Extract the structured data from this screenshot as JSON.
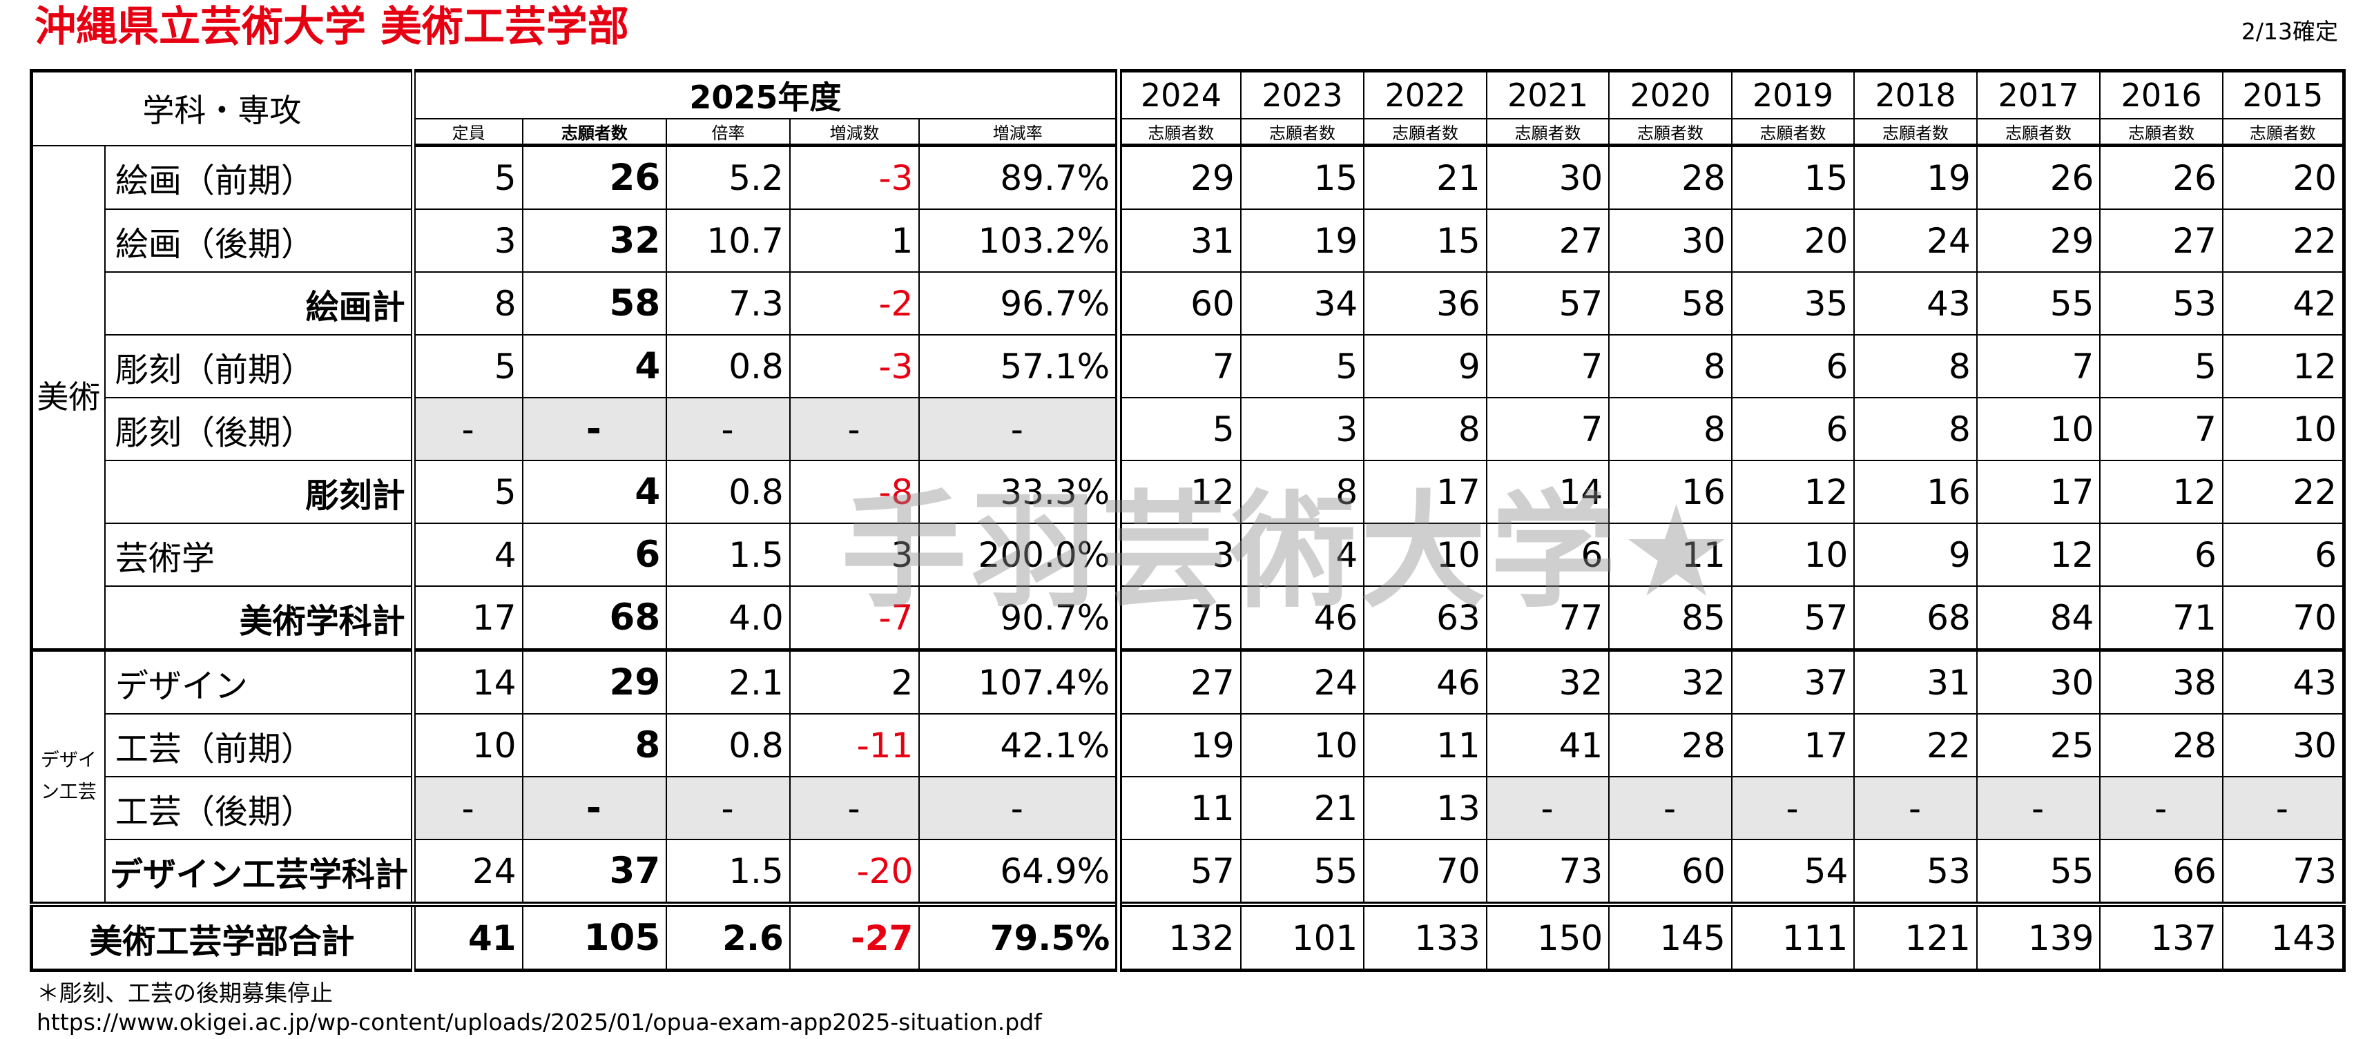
{
  "title": "沖縄県立芸術大学 美術工芸学部",
  "confirmed": "2/13確定",
  "watermark": "手羽芸術大学★",
  "header": {
    "dept": "学科・専攻",
    "year2025": "2025年度",
    "sub2025": [
      "定員",
      "志願者数",
      "倍率",
      "増減数",
      "増減率"
    ],
    "years": [
      "2024",
      "2023",
      "2022",
      "2021",
      "2020",
      "2019",
      "2018",
      "2017",
      "2016",
      "2015"
    ],
    "years_sub": "志願者数"
  },
  "groups": {
    "bijutsu": "美術",
    "design": "デザイン工芸"
  },
  "rows": [
    {
      "name": "絵画（前期）",
      "teiin": "5",
      "shigan": "26",
      "bairitsu": "5.2",
      "zougen": "-3",
      "ritsu": "89.7%",
      "hist": [
        "29",
        "15",
        "21",
        "30",
        "28",
        "15",
        "19",
        "26",
        "26",
        "20"
      ]
    },
    {
      "name": "絵画（後期）",
      "teiin": "3",
      "shigan": "32",
      "bairitsu": "10.7",
      "zougen": "1",
      "ritsu": "103.2%",
      "hist": [
        "31",
        "19",
        "15",
        "27",
        "30",
        "20",
        "24",
        "29",
        "27",
        "22"
      ]
    },
    {
      "name": "絵画計",
      "teiin": "8",
      "shigan": "58",
      "bairitsu": "7.3",
      "zougen": "-2",
      "ritsu": "96.7%",
      "hist": [
        "60",
        "34",
        "36",
        "57",
        "58",
        "35",
        "43",
        "55",
        "53",
        "42"
      ]
    },
    {
      "name": "彫刻（前期）",
      "teiin": "5",
      "shigan": "4",
      "bairitsu": "0.8",
      "zougen": "-3",
      "ritsu": "57.1%",
      "hist": [
        "7",
        "5",
        "9",
        "7",
        "8",
        "6",
        "8",
        "7",
        "5",
        "12"
      ]
    },
    {
      "name": "彫刻（後期）",
      "teiin": "-",
      "shigan": "-",
      "bairitsu": "-",
      "zougen": "-",
      "ritsu": "-",
      "hist": [
        "5",
        "3",
        "8",
        "7",
        "8",
        "6",
        "8",
        "10",
        "7",
        "10"
      ]
    },
    {
      "name": "彫刻計",
      "teiin": "5",
      "shigan": "4",
      "bairitsu": "0.8",
      "zougen": "-8",
      "ritsu": "33.3%",
      "hist": [
        "12",
        "8",
        "17",
        "14",
        "16",
        "12",
        "16",
        "17",
        "12",
        "22"
      ]
    },
    {
      "name": "芸術学",
      "teiin": "4",
      "shigan": "6",
      "bairitsu": "1.5",
      "zougen": "3",
      "ritsu": "200.0%",
      "hist": [
        "3",
        "4",
        "10",
        "6",
        "11",
        "10",
        "9",
        "12",
        "6",
        "6"
      ]
    },
    {
      "name": "美術学科計",
      "teiin": "17",
      "shigan": "68",
      "bairitsu": "4.0",
      "zougen": "-7",
      "ritsu": "90.7%",
      "hist": [
        "75",
        "46",
        "63",
        "77",
        "85",
        "57",
        "68",
        "84",
        "71",
        "70"
      ]
    },
    {
      "name": "デザイン",
      "teiin": "14",
      "shigan": "29",
      "bairitsu": "2.1",
      "zougen": "2",
      "ritsu": "107.4%",
      "hist": [
        "27",
        "24",
        "46",
        "32",
        "32",
        "37",
        "31",
        "30",
        "38",
        "43"
      ]
    },
    {
      "name": "工芸（前期）",
      "teiin": "10",
      "shigan": "8",
      "bairitsu": "0.8",
      "zougen": "-11",
      "ritsu": "42.1%",
      "hist": [
        "19",
        "10",
        "11",
        "41",
        "28",
        "17",
        "22",
        "25",
        "28",
        "30"
      ]
    },
    {
      "name": "工芸（後期）",
      "teiin": "-",
      "shigan": "-",
      "bairitsu": "-",
      "zougen": "-",
      "ritsu": "-",
      "hist": [
        "11",
        "21",
        "13",
        "-",
        "-",
        "-",
        "-",
        "-",
        "-",
        "-"
      ]
    },
    {
      "name": "デザイン工芸学科計",
      "teiin": "24",
      "shigan": "37",
      "bairitsu": "1.5",
      "zougen": "-20",
      "ritsu": "64.9%",
      "hist": [
        "57",
        "55",
        "70",
        "73",
        "60",
        "54",
        "53",
        "55",
        "66",
        "73"
      ]
    },
    {
      "name": "美術工芸学部合計",
      "teiin": "41",
      "shigan": "105",
      "bairitsu": "2.6",
      "zougen": "-27",
      "ritsu": "79.5%",
      "hist": [
        "132",
        "101",
        "133",
        "150",
        "145",
        "111",
        "121",
        "139",
        "137",
        "143"
      ]
    }
  ],
  "notes": {
    "note1": "＊彫刻、工芸の後期募集停止",
    "url": "https://www.okigei.ac.jp/wp-content/uploads/2025/01/opua-exam-app2025-situation.pdf"
  },
  "colors": {
    "title": "#e60012",
    "negative": "#e60012",
    "shaded": "#e6e6e6"
  },
  "chart_data": {
    "type": "table",
    "title": "沖縄県立芸術大学 美術工芸学部",
    "columns": [
      "学科・専攻",
      "定員",
      "志願者数",
      "倍率",
      "増減数",
      "増減率",
      "2024",
      "2023",
      "2022",
      "2021",
      "2020",
      "2019",
      "2018",
      "2017",
      "2016",
      "2015"
    ],
    "rows": [
      [
        "美術 絵画（前期）",
        5,
        26,
        5.2,
        -3,
        "89.7%",
        29,
        15,
        21,
        30,
        28,
        15,
        19,
        26,
        26,
        20
      ],
      [
        "美術 絵画（後期）",
        3,
        32,
        10.7,
        1,
        "103.2%",
        31,
        19,
        15,
        27,
        30,
        20,
        24,
        29,
        27,
        22
      ],
      [
        "美術 絵画計",
        8,
        58,
        7.3,
        -2,
        "96.7%",
        60,
        34,
        36,
        57,
        58,
        35,
        43,
        55,
        53,
        42
      ],
      [
        "美術 彫刻（前期）",
        5,
        4,
        0.8,
        -3,
        "57.1%",
        7,
        5,
        9,
        7,
        8,
        6,
        8,
        7,
        5,
        12
      ],
      [
        "美術 彫刻（後期）",
        "-",
        "-",
        "-",
        "-",
        "-",
        5,
        3,
        8,
        7,
        8,
        6,
        8,
        10,
        7,
        10
      ],
      [
        "美術 彫刻計",
        5,
        4,
        0.8,
        -8,
        "33.3%",
        12,
        8,
        17,
        14,
        16,
        12,
        16,
        17,
        12,
        22
      ],
      [
        "美術 芸術学",
        4,
        6,
        1.5,
        3,
        "200.0%",
        3,
        4,
        10,
        6,
        11,
        10,
        9,
        12,
        6,
        6
      ],
      [
        "美術学科計",
        17,
        68,
        4.0,
        -7,
        "90.7%",
        75,
        46,
        63,
        77,
        85,
        57,
        68,
        84,
        71,
        70
      ],
      [
        "デザイン工芸 デザイン",
        14,
        29,
        2.1,
        2,
        "107.4%",
        27,
        24,
        46,
        32,
        32,
        37,
        31,
        30,
        38,
        43
      ],
      [
        "デザイン工芸 工芸（前期）",
        10,
        8,
        0.8,
        -11,
        "42.1%",
        19,
        10,
        11,
        41,
        28,
        17,
        22,
        25,
        28,
        30
      ],
      [
        "デザイン工芸 工芸（後期）",
        "-",
        "-",
        "-",
        "-",
        "-",
        11,
        21,
        13,
        "-",
        "-",
        "-",
        "-",
        "-",
        "-",
        "-"
      ],
      [
        "デザイン工芸学科計",
        24,
        37,
        1.5,
        -20,
        "64.9%",
        57,
        55,
        70,
        73,
        60,
        54,
        53,
        55,
        66,
        73
      ],
      [
        "美術工芸学部合計",
        41,
        105,
        2.6,
        -27,
        "79.5%",
        132,
        101,
        133,
        150,
        145,
        111,
        121,
        139,
        137,
        143
      ]
    ]
  }
}
